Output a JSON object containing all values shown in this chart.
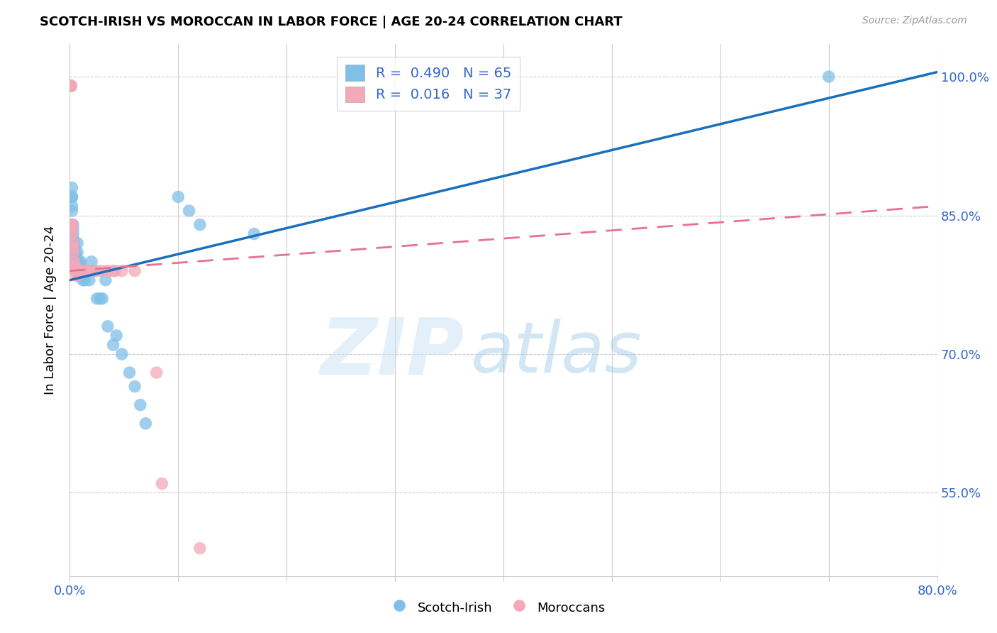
{
  "title": "SCOTCH-IRISH VS MOROCCAN IN LABOR FORCE | AGE 20-24 CORRELATION CHART",
  "source": "Source: ZipAtlas.com",
  "ylabel": "In Labor Force | Age 20-24",
  "x_min": 0.0,
  "x_max": 0.8,
  "y_min": 0.46,
  "y_max": 1.035,
  "x_tick_positions": [
    0.0,
    0.1,
    0.2,
    0.3,
    0.4,
    0.5,
    0.6,
    0.7,
    0.8
  ],
  "x_tick_labels": [
    "0.0%",
    "",
    "",
    "",
    "",
    "",
    "",
    "",
    "80.0%"
  ],
  "y_tick_positions": [
    0.55,
    0.7,
    0.85,
    1.0
  ],
  "y_tick_labels": [
    "55.0%",
    "70.0%",
    "85.0%",
    "100.0%"
  ],
  "scotch_irish_R": 0.49,
  "scotch_irish_N": 65,
  "moroccan_R": 0.016,
  "moroccan_N": 37,
  "scotch_irish_color": "#7fbfe8",
  "moroccan_color": "#f4a8b8",
  "scotch_irish_line_color": "#1a6fbd",
  "moroccan_line_color": "#e87090",
  "si_trend_x": [
    0.0,
    0.8
  ],
  "si_trend_y": [
    0.78,
    1.005
  ],
  "mo_trend_x": [
    0.0,
    0.8
  ],
  "mo_trend_y": [
    0.79,
    0.86
  ],
  "scotch_irish_x": [
    0.001,
    0.001,
    0.001,
    0.001,
    0.001,
    0.001,
    0.002,
    0.002,
    0.002,
    0.002,
    0.002,
    0.003,
    0.003,
    0.003,
    0.003,
    0.004,
    0.004,
    0.004,
    0.005,
    0.005,
    0.005,
    0.006,
    0.006,
    0.006,
    0.007,
    0.007,
    0.008,
    0.008,
    0.009,
    0.009,
    0.01,
    0.01,
    0.01,
    0.011,
    0.011,
    0.012,
    0.012,
    0.013,
    0.014,
    0.014,
    0.015,
    0.016,
    0.017,
    0.018,
    0.018,
    0.019,
    0.02,
    0.022,
    0.025,
    0.028,
    0.03,
    0.033,
    0.035,
    0.04,
    0.043,
    0.048,
    0.055,
    0.06,
    0.065,
    0.07,
    0.1,
    0.11,
    0.12,
    0.7,
    0.17
  ],
  "scotch_irish_y": [
    0.99,
    0.99,
    0.99,
    0.99,
    0.99,
    0.99,
    0.88,
    0.87,
    0.87,
    0.86,
    0.855,
    0.84,
    0.835,
    0.83,
    0.825,
    0.82,
    0.815,
    0.81,
    0.81,
    0.805,
    0.8,
    0.8,
    0.795,
    0.79,
    0.82,
    0.81,
    0.8,
    0.79,
    0.79,
    0.785,
    0.8,
    0.795,
    0.79,
    0.79,
    0.785,
    0.79,
    0.78,
    0.79,
    0.79,
    0.78,
    0.79,
    0.79,
    0.79,
    0.79,
    0.78,
    0.79,
    0.8,
    0.79,
    0.76,
    0.76,
    0.76,
    0.78,
    0.73,
    0.71,
    0.72,
    0.7,
    0.68,
    0.665,
    0.645,
    0.625,
    0.87,
    0.855,
    0.84,
    1.0,
    0.83
  ],
  "moroccan_x": [
    0.001,
    0.001,
    0.001,
    0.001,
    0.002,
    0.002,
    0.002,
    0.002,
    0.003,
    0.003,
    0.003,
    0.004,
    0.004,
    0.005,
    0.005,
    0.006,
    0.006,
    0.007,
    0.007,
    0.008,
    0.009,
    0.01,
    0.011,
    0.013,
    0.015,
    0.017,
    0.019,
    0.025,
    0.03,
    0.035,
    0.04,
    0.042,
    0.048,
    0.06,
    0.08,
    0.085,
    0.12
  ],
  "moroccan_y": [
    0.99,
    0.99,
    0.99,
    0.99,
    0.84,
    0.84,
    0.835,
    0.83,
    0.82,
    0.815,
    0.81,
    0.8,
    0.795,
    0.795,
    0.79,
    0.79,
    0.785,
    0.79,
    0.785,
    0.79,
    0.79,
    0.79,
    0.79,
    0.79,
    0.79,
    0.79,
    0.79,
    0.79,
    0.79,
    0.79,
    0.79,
    0.79,
    0.79,
    0.79,
    0.68,
    0.56,
    0.49
  ]
}
